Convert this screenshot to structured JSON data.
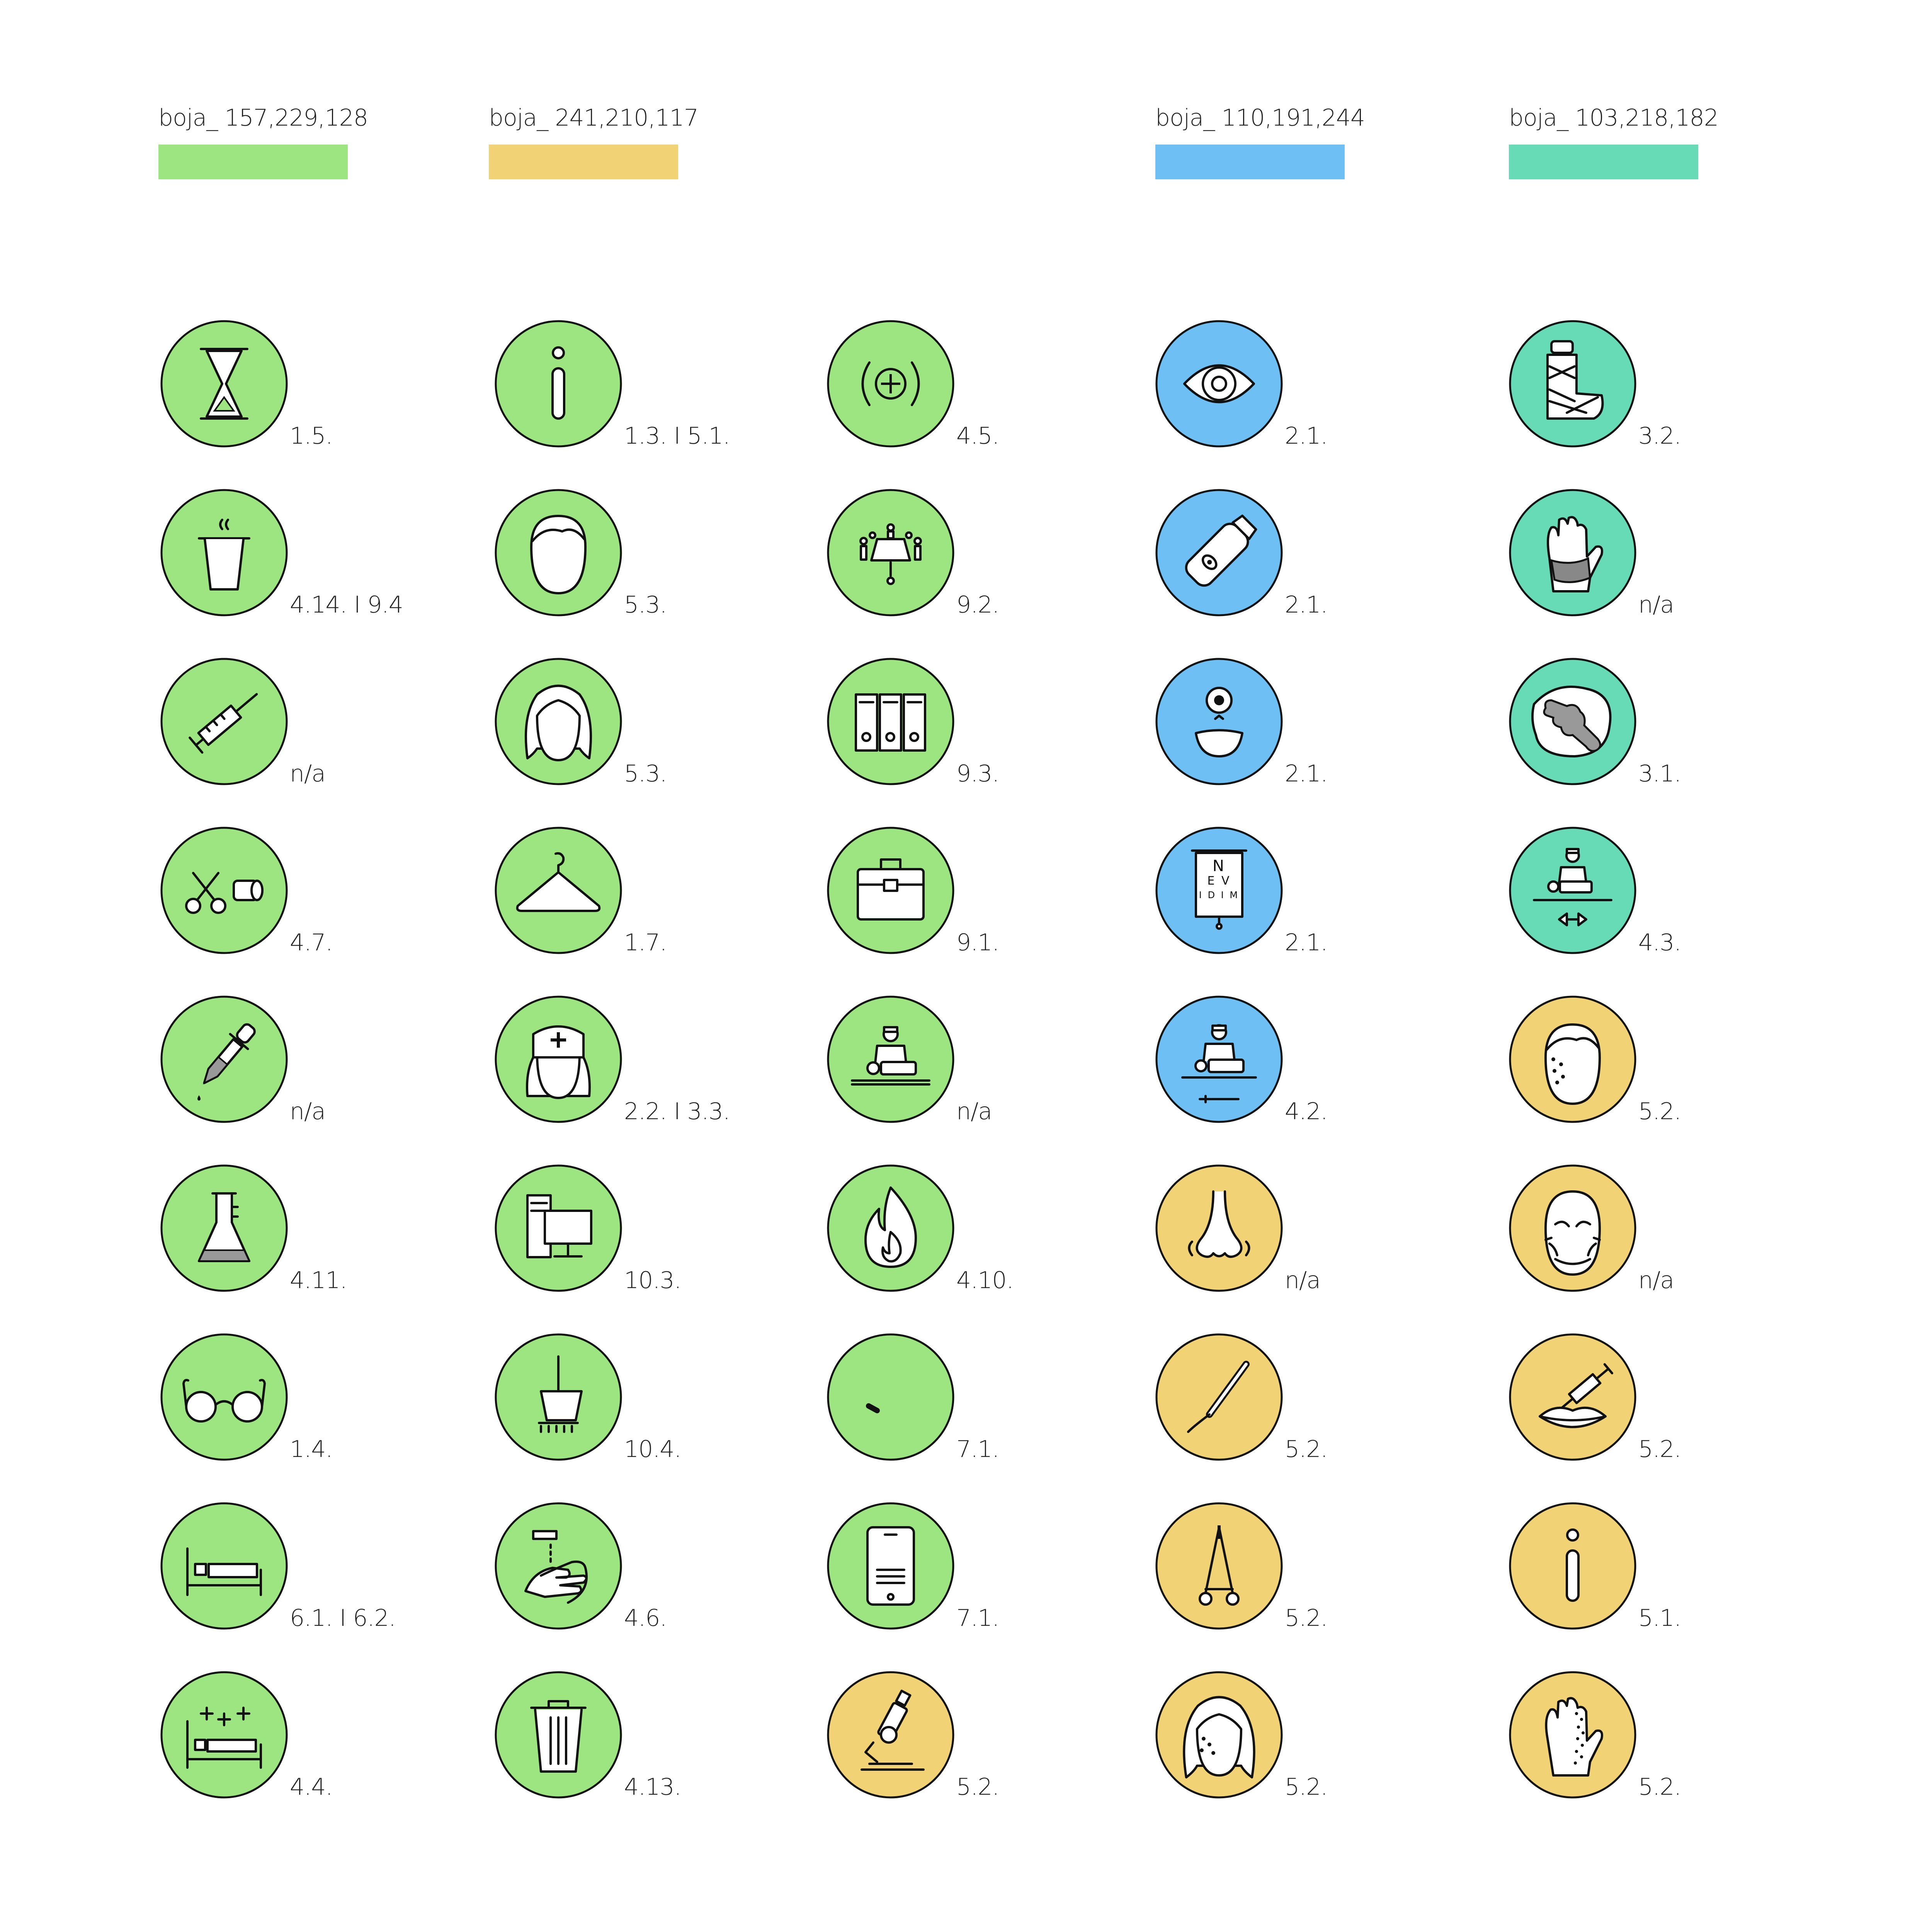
{
  "palette": [
    {
      "label": "boja_  157,229,128",
      "color": "#9DE580"
    },
    {
      "label": "boja_  241,210,117",
      "color": "#F1D275"
    },
    {
      "label": "boja_  110,191,244",
      "color": "#6EBFF4"
    },
    {
      "label": "boja_  103,218,182",
      "color": "#67DAB6"
    }
  ],
  "columns": [
    {
      "icons": [
        {
          "icon": "hourglass-icon",
          "fill": "green",
          "code": "1.5."
        },
        {
          "icon": "hot-drink-cup-icon",
          "fill": "green",
          "code": "4.14. I 9.4"
        },
        {
          "icon": "syringe-icon",
          "fill": "green",
          "code": "n/a"
        },
        {
          "icon": "scissors-bandage-roll-icon",
          "fill": "green",
          "code": "4.7."
        },
        {
          "icon": "dropper-icon",
          "fill": "green",
          "code": "n/a"
        },
        {
          "icon": "lab-flask-icon",
          "fill": "green",
          "code": "4.11."
        },
        {
          "icon": "glasses-icon",
          "fill": "green",
          "code": "1.4."
        },
        {
          "icon": "hospital-bed-icon",
          "fill": "green",
          "code": "6.1. I 6.2."
        },
        {
          "icon": "recovery-bed-icon",
          "fill": "green",
          "code": "4.4."
        }
      ]
    },
    {
      "icons": [
        {
          "icon": "info-icon",
          "fill": "green",
          "code": "1.3. I 5.1."
        },
        {
          "icon": "male-head-icon",
          "fill": "green",
          "code": "5.3."
        },
        {
          "icon": "female-head-icon",
          "fill": "green",
          "code": "5.3."
        },
        {
          "icon": "hanger-icon",
          "fill": "green",
          "code": "1.7."
        },
        {
          "icon": "nurse-icon",
          "fill": "green",
          "code": "2.2. I 3.3."
        },
        {
          "icon": "computer-icon",
          "fill": "green",
          "code": "10.3."
        },
        {
          "icon": "mop-bucket-icon",
          "fill": "green",
          "code": "10.4."
        },
        {
          "icon": "hand-washing-icon",
          "fill": "green",
          "code": "4.6."
        },
        {
          "icon": "trash-bin-icon",
          "fill": "green",
          "code": "4.13."
        }
      ]
    },
    {
      "icons": [
        {
          "icon": "first-aid-plus-icon",
          "fill": "green",
          "code": "4.5."
        },
        {
          "icon": "meeting-table-icon",
          "fill": "green",
          "code": "9.2."
        },
        {
          "icon": "binders-icon",
          "fill": "green",
          "code": "9.3."
        },
        {
          "icon": "medical-case-icon",
          "fill": "green",
          "code": "9.1."
        },
        {
          "icon": "surgeon-operating-icon",
          "fill": "green",
          "code": "n/a"
        },
        {
          "icon": "flame-icon",
          "fill": "green",
          "code": "4.10."
        },
        {
          "icon": "hook-icon",
          "fill": "green",
          "code": "7.1."
        },
        {
          "icon": "tablet-icon",
          "fill": "green",
          "code": "7.1."
        },
        {
          "icon": "microscope-icon",
          "fill": "yellow",
          "code": "5.2."
        }
      ]
    },
    {
      "icons": [
        {
          "icon": "eye-icon",
          "fill": "blue",
          "code": "2.1."
        },
        {
          "icon": "eye-drops-icon",
          "fill": "blue",
          "code": "2.1."
        },
        {
          "icon": "contact-lens-icon",
          "fill": "blue",
          "code": "2.1."
        },
        {
          "icon": "eye-chart-icon",
          "fill": "blue",
          "code": "2.1.",
          "chart": [
            "N",
            "E V",
            "I D I M"
          ]
        },
        {
          "icon": "eye-surgery-icon",
          "fill": "blue",
          "code": "4.2."
        },
        {
          "icon": "nose-icon",
          "fill": "yellow",
          "code": "n/a"
        },
        {
          "icon": "scalpel-icon",
          "fill": "yellow",
          "code": "5.2."
        },
        {
          "icon": "forceps-icon",
          "fill": "yellow",
          "code": "5.2."
        },
        {
          "icon": "face-spots-icon",
          "fill": "yellow",
          "code": "5.2."
        }
      ]
    },
    {
      "icons": [
        {
          "icon": "leg-cast-icon",
          "fill": "teal",
          "code": "3.2."
        },
        {
          "icon": "hand-brace-icon",
          "fill": "teal",
          "code": "n/a"
        },
        {
          "icon": "joint-bone-icon",
          "fill": "teal",
          "code": "3.1."
        },
        {
          "icon": "physio-treatment-icon",
          "fill": "teal",
          "code": "4.3."
        },
        {
          "icon": "face-acne-icon",
          "fill": "yellow",
          "code": "5.2."
        },
        {
          "icon": "face-wrinkles-icon",
          "fill": "yellow",
          "code": "n/a"
        },
        {
          "icon": "lip-injection-icon",
          "fill": "yellow",
          "code": "5.2."
        },
        {
          "icon": "info-icon",
          "fill": "yellow",
          "code": "5.1."
        },
        {
          "icon": "hand-dots-icon",
          "fill": "yellow",
          "code": "5.2."
        }
      ]
    }
  ]
}
